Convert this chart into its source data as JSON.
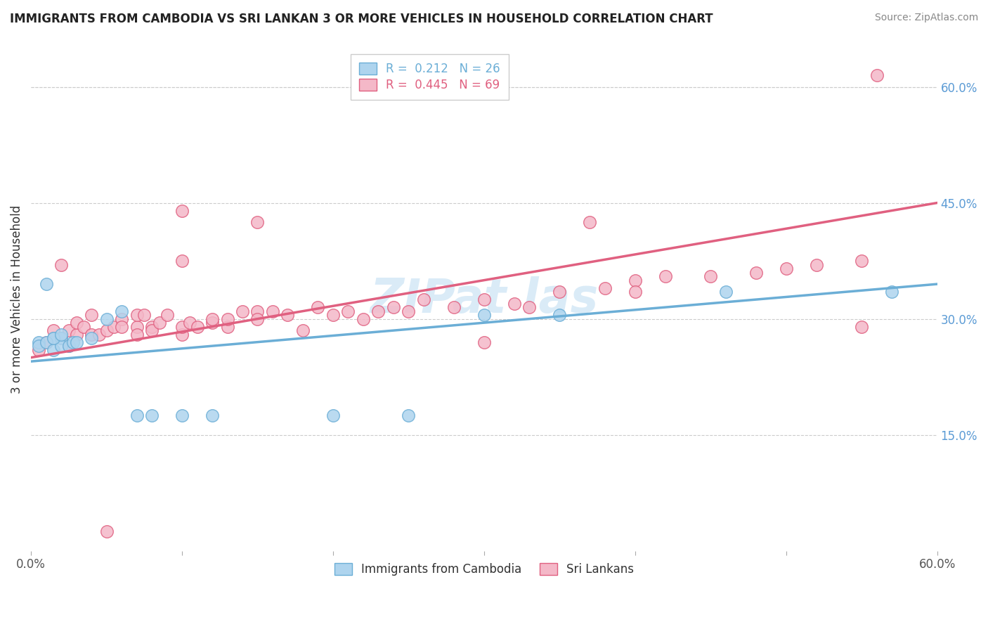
{
  "title": "IMMIGRANTS FROM CAMBODIA VS SRI LANKAN 3 OR MORE VEHICLES IN HOUSEHOLD CORRELATION CHART",
  "source": "Source: ZipAtlas.com",
  "ylabel": "3 or more Vehicles in Household",
  "x_min": 0.0,
  "x_max": 0.6,
  "y_min": 0.0,
  "y_max": 0.65,
  "x_tick_positions": [
    0.0,
    0.1,
    0.2,
    0.3,
    0.4,
    0.5,
    0.6
  ],
  "x_tick_labels": [
    "0.0%",
    "",
    "",
    "",
    "",
    "",
    "60.0%"
  ],
  "y_tick_positions": [
    0.15,
    0.3,
    0.45,
    0.6
  ],
  "y_tick_labels": [
    "15.0%",
    "30.0%",
    "45.0%",
    "60.0%"
  ],
  "legend_entries": [
    {
      "label": "R =  0.212   N = 26",
      "color": "#6baed6"
    },
    {
      "label": "R =  0.445   N = 69",
      "color": "#e06080"
    }
  ],
  "legend_labels_bottom": [
    "Immigrants from Cambodia",
    "Sri Lankans"
  ],
  "blue_fill": "#aed4ee",
  "blue_edge": "#6baed6",
  "pink_fill": "#f4b8c8",
  "pink_edge": "#e06080",
  "blue_line_color": "#6baed6",
  "pink_line_color": "#e06080",
  "watermark_text": "ZIPat las",
  "watermark_color": "#aed4ee",
  "blue_scatter": [
    [
      0.005,
      0.27
    ],
    [
      0.01,
      0.345
    ],
    [
      0.015,
      0.275
    ],
    [
      0.02,
      0.275
    ],
    [
      0.005,
      0.265
    ],
    [
      0.01,
      0.27
    ],
    [
      0.015,
      0.26
    ],
    [
      0.02,
      0.265
    ],
    [
      0.025,
      0.265
    ],
    [
      0.028,
      0.27
    ],
    [
      0.015,
      0.275
    ],
    [
      0.02,
      0.28
    ],
    [
      0.03,
      0.27
    ],
    [
      0.04,
      0.275
    ],
    [
      0.05,
      0.3
    ],
    [
      0.06,
      0.31
    ],
    [
      0.07,
      0.175
    ],
    [
      0.08,
      0.175
    ],
    [
      0.1,
      0.175
    ],
    [
      0.12,
      0.175
    ],
    [
      0.2,
      0.175
    ],
    [
      0.25,
      0.175
    ],
    [
      0.3,
      0.305
    ],
    [
      0.35,
      0.305
    ],
    [
      0.46,
      0.335
    ],
    [
      0.57,
      0.335
    ]
  ],
  "pink_scatter": [
    [
      0.005,
      0.26
    ],
    [
      0.01,
      0.27
    ],
    [
      0.015,
      0.285
    ],
    [
      0.02,
      0.275
    ],
    [
      0.025,
      0.265
    ],
    [
      0.025,
      0.285
    ],
    [
      0.03,
      0.28
    ],
    [
      0.03,
      0.295
    ],
    [
      0.035,
      0.29
    ],
    [
      0.04,
      0.305
    ],
    [
      0.04,
      0.28
    ],
    [
      0.045,
      0.28
    ],
    [
      0.05,
      0.285
    ],
    [
      0.055,
      0.29
    ],
    [
      0.06,
      0.3
    ],
    [
      0.06,
      0.29
    ],
    [
      0.07,
      0.29
    ],
    [
      0.07,
      0.305
    ],
    [
      0.07,
      0.28
    ],
    [
      0.075,
      0.305
    ],
    [
      0.08,
      0.29
    ],
    [
      0.08,
      0.285
    ],
    [
      0.085,
      0.295
    ],
    [
      0.09,
      0.305
    ],
    [
      0.1,
      0.28
    ],
    [
      0.1,
      0.29
    ],
    [
      0.105,
      0.295
    ],
    [
      0.11,
      0.29
    ],
    [
      0.12,
      0.295
    ],
    [
      0.12,
      0.3
    ],
    [
      0.13,
      0.29
    ],
    [
      0.13,
      0.3
    ],
    [
      0.14,
      0.31
    ],
    [
      0.15,
      0.31
    ],
    [
      0.15,
      0.3
    ],
    [
      0.16,
      0.31
    ],
    [
      0.17,
      0.305
    ],
    [
      0.18,
      0.285
    ],
    [
      0.19,
      0.315
    ],
    [
      0.2,
      0.305
    ],
    [
      0.21,
      0.31
    ],
    [
      0.22,
      0.3
    ],
    [
      0.23,
      0.31
    ],
    [
      0.24,
      0.315
    ],
    [
      0.25,
      0.31
    ],
    [
      0.26,
      0.325
    ],
    [
      0.28,
      0.315
    ],
    [
      0.3,
      0.325
    ],
    [
      0.32,
      0.32
    ],
    [
      0.33,
      0.315
    ],
    [
      0.35,
      0.335
    ],
    [
      0.38,
      0.34
    ],
    [
      0.4,
      0.35
    ],
    [
      0.4,
      0.335
    ],
    [
      0.42,
      0.355
    ],
    [
      0.45,
      0.355
    ],
    [
      0.48,
      0.36
    ],
    [
      0.5,
      0.365
    ],
    [
      0.52,
      0.37
    ],
    [
      0.55,
      0.375
    ],
    [
      0.55,
      0.29
    ],
    [
      0.02,
      0.37
    ],
    [
      0.37,
      0.425
    ],
    [
      0.56,
      0.615
    ],
    [
      0.15,
      0.425
    ],
    [
      0.1,
      0.44
    ],
    [
      0.1,
      0.375
    ],
    [
      0.05,
      0.025
    ],
    [
      0.3,
      0.27
    ]
  ],
  "blue_regression": {
    "x_start": 0.0,
    "x_end": 0.6,
    "y_start": 0.245,
    "y_end": 0.345
  },
  "pink_regression": {
    "x_start": 0.0,
    "x_end": 0.6,
    "y_start": 0.25,
    "y_end": 0.45
  }
}
